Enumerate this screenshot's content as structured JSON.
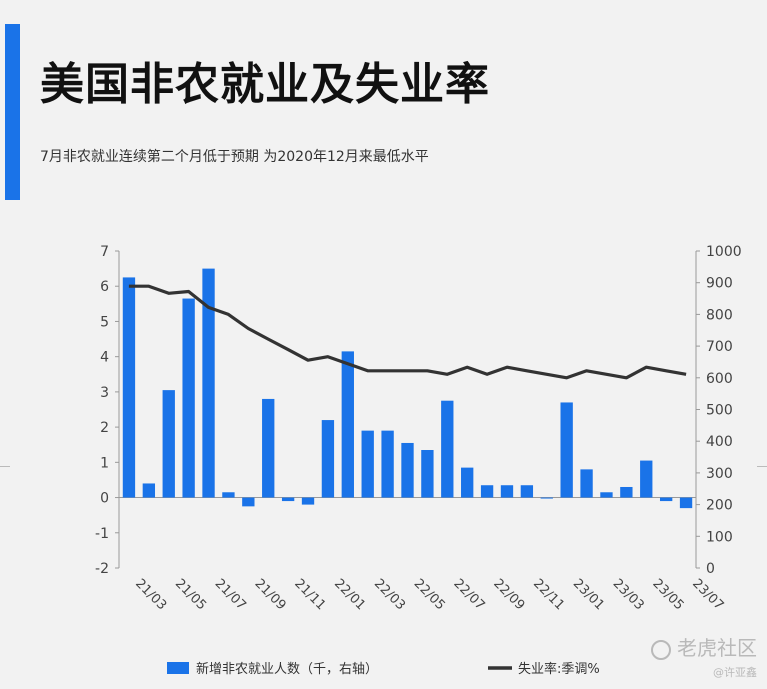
{
  "header": {
    "title": "美国非农就业及失业率",
    "subtitle": "7月非农就业连续第二个月低于预期 为2020年12月来最低水平"
  },
  "watermark": {
    "brand": "老虎社区",
    "author": "@许亚鑫"
  },
  "colors": {
    "accent": "#1a73e8",
    "bar": "#1a73e8",
    "line": "#333333"
  },
  "chart_data": {
    "type": "bar",
    "x_tick_labels": [
      "21/03",
      "21/05",
      "21/07",
      "21/09",
      "21/11",
      "22/01",
      "22/03",
      "22/05",
      "22/07",
      "22/09",
      "22/11",
      "23/01",
      "23/03",
      "23/05",
      "23/07"
    ],
    "y_left": {
      "ticks": [
        "-2",
        "-1",
        "0",
        "1",
        "2",
        "3",
        "4",
        "5",
        "6",
        "7"
      ],
      "ylim": [
        -2,
        7
      ]
    },
    "y_right": {
      "ticks": [
        "0",
        "100",
        "200",
        "300",
        "400",
        "500",
        "600",
        "700",
        "800",
        "900",
        "1000"
      ],
      "ylim": [
        0,
        1000
      ]
    },
    "series": [
      {
        "name": "新增非农就业人数（千，右轴）",
        "type": "bar",
        "axis": "left",
        "values": [
          6.25,
          0.4,
          3.05,
          5.65,
          6.5,
          0.15,
          -0.25,
          2.8,
          -0.1,
          -0.2,
          2.2,
          4.15,
          1.9,
          1.9,
          1.55,
          1.35,
          2.75,
          0.85,
          0.35,
          0.35,
          0.35,
          0.0,
          2.7,
          0.8,
          0.15,
          0.3,
          1.05,
          -0.1,
          -0.3
        ]
      },
      {
        "name": "失业率:季调%",
        "type": "line",
        "axis": "left",
        "values": [
          6.0,
          6.0,
          5.8,
          5.85,
          5.4,
          5.2,
          4.8,
          4.5,
          4.2,
          3.9,
          4.0,
          3.8,
          3.6,
          3.6,
          3.6,
          3.6,
          3.5,
          3.7,
          3.5,
          3.7,
          3.6,
          3.5,
          3.4,
          3.6,
          3.5,
          3.4,
          3.7,
          3.6,
          3.5
        ]
      }
    ],
    "grid": false,
    "legend_position": "bottom"
  }
}
